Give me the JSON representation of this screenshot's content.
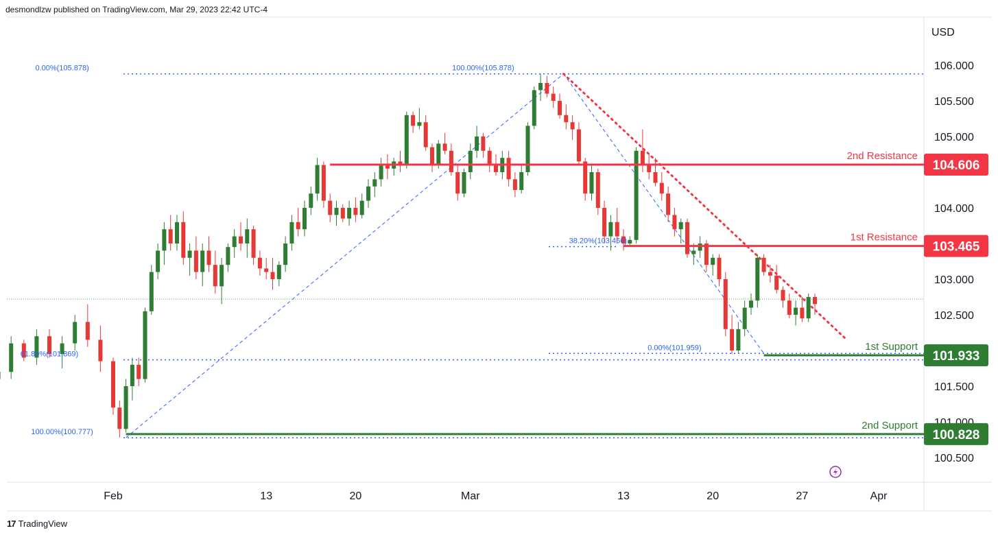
{
  "header": {
    "text": "desmondlzw published on TradingView.com, Mar 29, 2023 22:42 UTC-4"
  },
  "footer": {
    "logo_glyph": "17",
    "brand": "TradingView"
  },
  "colors": {
    "up": "#2e7d32",
    "down": "#e53935",
    "resistance": "#f23645",
    "support": "#2e7d32",
    "fib": "#2962ff",
    "axis": "#131722"
  },
  "chart_data": {
    "type": "candlestick",
    "currency_label": "USD",
    "ylim": [
      100.2,
      106.4
    ],
    "y_ticks": [
      "100.500",
      "101.000",
      "101.500",
      "102.500",
      "103.000",
      "104.000",
      "105.000",
      "105.500",
      "106.000"
    ],
    "x_ticks": [
      {
        "label": "Feb",
        "day": 0
      },
      {
        "label": "13",
        "day": 12
      },
      {
        "label": "20",
        "day": 19
      },
      {
        "label": "Mar",
        "day": 28
      },
      {
        "label": "13",
        "day": 40
      },
      {
        "label": "20",
        "day": 47
      },
      {
        "label": "27",
        "day": 54
      },
      {
        "label": "Apr",
        "day": 60
      }
    ],
    "levels": [
      {
        "name": "2nd Resistance",
        "value": "104.606",
        "kind": "resistance",
        "from_day": 17
      },
      {
        "name": "1st Resistance",
        "value": "103.465",
        "kind": "resistance",
        "from_day": 40
      },
      {
        "name": "1st Support",
        "value": "101.933",
        "kind": "support",
        "from_day": 51
      },
      {
        "name": "2nd Support",
        "value": "100.828",
        "kind": "support",
        "from_day": 1
      }
    ],
    "fib_labels": [
      {
        "text": "0.00%(105.878)",
        "value": 105.878,
        "day": -4
      },
      {
        "text": "100.00%(105.878)",
        "value": 105.878,
        "day": 29
      },
      {
        "text": "38.20%(103.456)",
        "value": 103.456,
        "day": 38
      },
      {
        "text": "0.00%(101.959)",
        "value": 101.959,
        "day": 44
      },
      {
        "text": "61.80%(101.869)",
        "value": 101.869,
        "day": -5
      },
      {
        "text": "100.00%(100.777)",
        "value": 100.777,
        "day": -4
      }
    ],
    "trendline": {
      "from": {
        "day": 35.3,
        "value": 105.878
      },
      "to": {
        "day": 57.5,
        "value": 102.15
      }
    },
    "fib_dashed": [
      {
        "from": {
          "day": 1,
          "value": 100.777
        },
        "to": {
          "day": 35.3,
          "value": 105.878
        }
      },
      {
        "from": {
          "day": 35.3,
          "value": 105.878
        },
        "to": {
          "day": 51,
          "value": 101.959
        }
      }
    ],
    "current_price": 102.72,
    "candles": [
      [
        -14,
        101.95,
        102.1,
        101.75,
        101.85
      ],
      [
        -13,
        101.85,
        101.95,
        101.65,
        101.75
      ],
      [
        -12,
        101.75,
        101.95,
        101.6,
        101.9
      ],
      [
        -11,
        101.9,
        102.05,
        101.6,
        101.7
      ],
      [
        -10,
        101.7,
        101.85,
        101.5,
        101.6
      ],
      [
        -9,
        101.6,
        101.8,
        101.45,
        101.7
      ],
      [
        -8,
        101.7,
        102.2,
        101.6,
        102.1
      ],
      [
        -7,
        102.1,
        102.15,
        101.85,
        101.9
      ],
      [
        -6,
        101.9,
        102.3,
        101.8,
        102.2
      ],
      [
        -5,
        102.2,
        102.3,
        101.9,
        101.95
      ],
      [
        -4,
        101.95,
        102.2,
        101.75,
        102.1
      ],
      [
        -3,
        102.1,
        102.5,
        102.0,
        102.4
      ],
      [
        -2,
        102.4,
        102.65,
        102.05,
        102.15
      ],
      [
        -1,
        102.15,
        102.35,
        101.7,
        101.85
      ],
      [
        0,
        101.85,
        101.9,
        101.1,
        101.2
      ],
      [
        0.5,
        101.2,
        101.3,
        100.78,
        100.9
      ],
      [
        1,
        100.9,
        101.6,
        100.85,
        101.5
      ],
      [
        1.5,
        101.5,
        101.9,
        101.3,
        101.8
      ],
      [
        2,
        101.8,
        101.9,
        101.5,
        101.6
      ],
      [
        2.5,
        101.6,
        102.6,
        101.55,
        102.55
      ],
      [
        3,
        102.55,
        103.2,
        102.5,
        103.1
      ],
      [
        3.5,
        103.1,
        103.5,
        103.0,
        103.4
      ],
      [
        4,
        103.4,
        103.8,
        103.2,
        103.7
      ],
      [
        4.5,
        103.7,
        103.9,
        103.4,
        103.5
      ],
      [
        5,
        103.5,
        103.9,
        103.4,
        103.8
      ],
      [
        5.5,
        103.8,
        103.95,
        103.2,
        103.3
      ],
      [
        6,
        103.3,
        103.5,
        103.05,
        103.4
      ],
      [
        6.5,
        103.4,
        103.6,
        103.0,
        103.1
      ],
      [
        7,
        103.1,
        103.5,
        102.9,
        103.4
      ],
      [
        7.5,
        103.4,
        103.6,
        103.1,
        103.2
      ],
      [
        8,
        103.2,
        103.4,
        102.8,
        102.9
      ],
      [
        8.5,
        102.9,
        103.3,
        102.65,
        103.2
      ],
      [
        9,
        103.2,
        103.5,
        103.1,
        103.45
      ],
      [
        9.5,
        103.45,
        103.7,
        103.3,
        103.6
      ],
      [
        10,
        103.6,
        103.8,
        103.4,
        103.5
      ],
      [
        10.5,
        103.5,
        103.85,
        103.3,
        103.7
      ],
      [
        11,
        103.7,
        103.75,
        103.2,
        103.3
      ],
      [
        11.5,
        103.3,
        103.4,
        103.05,
        103.15
      ],
      [
        12,
        103.15,
        103.3,
        103.0,
        103.1
      ],
      [
        12.5,
        103.1,
        103.3,
        102.85,
        103.0
      ],
      [
        13,
        103.0,
        103.25,
        102.9,
        103.2
      ],
      [
        13.5,
        103.2,
        103.6,
        103.1,
        103.5
      ],
      [
        14,
        103.5,
        103.9,
        103.4,
        103.8
      ],
      [
        14.5,
        103.8,
        104.0,
        103.6,
        103.7
      ],
      [
        15,
        103.7,
        104.1,
        103.6,
        104.0
      ],
      [
        15.5,
        104.0,
        104.3,
        103.9,
        104.2
      ],
      [
        16,
        104.2,
        104.7,
        104.1,
        104.6
      ],
      [
        16.5,
        104.6,
        104.65,
        104.0,
        104.1
      ],
      [
        17,
        104.1,
        104.2,
        103.8,
        103.9
      ],
      [
        17.5,
        103.9,
        104.1,
        103.75,
        104.0
      ],
      [
        18,
        104.0,
        104.05,
        103.8,
        103.85
      ],
      [
        18.5,
        103.85,
        104.1,
        103.75,
        104.0
      ],
      [
        19,
        104.0,
        104.15,
        103.8,
        103.9
      ],
      [
        19.5,
        103.9,
        104.2,
        103.85,
        104.1
      ],
      [
        20,
        104.1,
        104.4,
        104.0,
        104.3
      ],
      [
        20.5,
        104.3,
        104.5,
        104.15,
        104.4
      ],
      [
        21,
        104.4,
        104.7,
        104.3,
        104.6
      ],
      [
        21.5,
        104.6,
        104.75,
        104.4,
        104.55
      ],
      [
        22,
        104.55,
        104.7,
        104.45,
        104.65
      ],
      [
        22.5,
        104.65,
        104.8,
        104.5,
        104.6
      ],
      [
        23,
        104.6,
        105.35,
        104.55,
        105.3
      ],
      [
        23.5,
        105.3,
        105.35,
        105.05,
        105.15
      ],
      [
        24,
        105.15,
        105.4,
        105.1,
        105.2
      ],
      [
        24.5,
        105.2,
        105.3,
        104.8,
        104.85
      ],
      [
        25,
        104.85,
        104.9,
        104.5,
        104.6
      ],
      [
        25.5,
        104.6,
        104.95,
        104.55,
        104.9
      ],
      [
        26,
        104.9,
        105.05,
        104.75,
        104.8
      ],
      [
        26.5,
        104.8,
        104.9,
        104.45,
        104.5
      ],
      [
        27,
        104.5,
        104.6,
        104.1,
        104.2
      ],
      [
        27.5,
        104.2,
        104.55,
        104.15,
        104.5
      ],
      [
        28,
        104.5,
        104.9,
        104.4,
        104.8
      ],
      [
        28.5,
        104.8,
        105.15,
        104.7,
        105.0
      ],
      [
        29,
        105.0,
        105.05,
        104.7,
        104.8
      ],
      [
        29.5,
        104.8,
        104.85,
        104.5,
        104.6
      ],
      [
        30,
        104.6,
        104.75,
        104.45,
        104.5
      ],
      [
        30.5,
        104.5,
        104.8,
        104.4,
        104.7
      ],
      [
        31,
        104.7,
        104.8,
        104.3,
        104.4
      ],
      [
        31.5,
        104.4,
        104.5,
        104.15,
        104.25
      ],
      [
        32,
        104.25,
        104.6,
        104.2,
        104.5
      ],
      [
        32.5,
        104.5,
        105.2,
        104.45,
        105.15
      ],
      [
        33,
        105.15,
        105.7,
        105.1,
        105.65
      ],
      [
        33.5,
        105.65,
        105.88,
        105.5,
        105.75
      ],
      [
        34,
        105.75,
        105.85,
        105.55,
        105.6
      ],
      [
        34.5,
        105.6,
        105.7,
        105.4,
        105.5
      ],
      [
        35,
        105.5,
        105.6,
        105.25,
        105.3
      ],
      [
        35.5,
        105.3,
        105.45,
        105.1,
        105.2
      ],
      [
        36,
        105.2,
        105.3,
        104.95,
        105.1
      ],
      [
        36.5,
        105.1,
        105.2,
        104.6,
        104.65
      ],
      [
        37,
        104.65,
        104.7,
        104.1,
        104.2
      ],
      [
        37.5,
        104.2,
        104.6,
        104.1,
        104.5
      ],
      [
        38,
        104.5,
        104.55,
        103.9,
        104.0
      ],
      [
        38.5,
        104.0,
        104.1,
        103.5,
        103.6
      ],
      [
        39,
        103.6,
        103.9,
        103.4,
        103.8
      ],
      [
        39.5,
        103.8,
        104.0,
        103.5,
        103.6
      ],
      [
        40,
        103.6,
        103.7,
        103.4,
        103.5
      ],
      [
        40.5,
        103.5,
        103.6,
        103.45,
        103.55
      ],
      [
        41,
        103.55,
        104.85,
        103.5,
        104.8
      ],
      [
        41.5,
        104.8,
        105.1,
        104.5,
        104.6
      ],
      [
        42,
        104.6,
        104.75,
        104.4,
        104.5
      ],
      [
        42.5,
        104.5,
        104.7,
        104.3,
        104.35
      ],
      [
        43,
        104.35,
        104.5,
        104.1,
        104.2
      ],
      [
        43.5,
        104.2,
        104.3,
        103.8,
        103.9
      ],
      [
        44,
        103.9,
        104.0,
        103.6,
        103.7
      ],
      [
        44.5,
        103.7,
        103.85,
        103.5,
        103.8
      ],
      [
        45,
        103.8,
        103.85,
        103.3,
        103.35
      ],
      [
        45.5,
        103.35,
        103.5,
        103.2,
        103.4
      ],
      [
        46,
        103.4,
        103.6,
        103.3,
        103.5
      ],
      [
        46.5,
        103.5,
        103.55,
        103.1,
        103.2
      ],
      [
        47,
        103.2,
        103.35,
        103.05,
        103.3
      ],
      [
        47.5,
        103.3,
        103.35,
        102.9,
        103.0
      ],
      [
        48,
        103.0,
        103.1,
        102.2,
        102.3
      ],
      [
        48.5,
        102.3,
        102.5,
        101.95,
        102.0
      ],
      [
        49,
        102.0,
        102.4,
        101.96,
        102.3
      ],
      [
        49.5,
        102.3,
        102.7,
        102.2,
        102.6
      ],
      [
        50,
        102.6,
        102.8,
        102.5,
        102.7
      ],
      [
        50.5,
        102.7,
        103.35,
        102.6,
        103.3
      ],
      [
        51,
        103.3,
        103.35,
        103.05,
        103.1
      ],
      [
        51.5,
        103.1,
        103.2,
        102.95,
        103.05
      ],
      [
        52,
        103.05,
        103.2,
        102.8,
        102.85
      ],
      [
        52.5,
        102.85,
        102.9,
        102.6,
        102.7
      ],
      [
        53,
        102.7,
        102.8,
        102.45,
        102.5
      ],
      [
        53.5,
        102.5,
        102.7,
        102.35,
        102.6
      ],
      [
        54,
        102.6,
        102.75,
        102.4,
        102.45
      ],
      [
        54.5,
        102.45,
        102.8,
        102.4,
        102.75
      ],
      [
        55,
        102.75,
        102.8,
        102.5,
        102.65
      ]
    ]
  }
}
